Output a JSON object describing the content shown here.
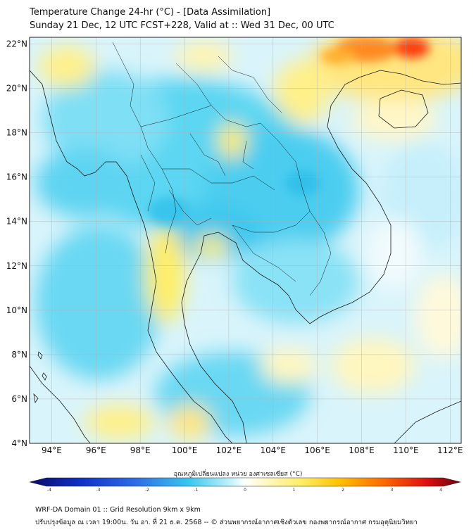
{
  "header": {
    "title_line1": "Temperature Change 24-hr (°C) - [Data Assimilation]",
    "title_line2": "Sunday 21 Dec, 12 UTC FCST+228, Valid at :: Wed 31 Dec, 00 UTC"
  },
  "map": {
    "lon_range": [
      93,
      112.5
    ],
    "lat_range": [
      4,
      22.3
    ],
    "lat_labels": [
      "22°N",
      "20°N",
      "18°N",
      "16°N",
      "14°N",
      "12°N",
      "10°N",
      "8°N",
      "6°N",
      "4°N"
    ],
    "lat_values": [
      22,
      20,
      18,
      16,
      14,
      12,
      10,
      8,
      6,
      4
    ],
    "lon_labels": [
      "94°E",
      "96°E",
      "98°E",
      "100°E",
      "102°E",
      "104°E",
      "106°E",
      "108°E",
      "110°E",
      "112°E"
    ],
    "lon_values": [
      94,
      96,
      98,
      100,
      102,
      104,
      106,
      108,
      110,
      112
    ]
  },
  "colorbar": {
    "title": "อุณหภูมิเปลี่ยนแปลง หน่วย องศาเซลเซียส (°C)",
    "tick_labels": [
      "-4",
      "-3",
      "-2",
      "-1",
      "0",
      "1",
      "2",
      "3",
      "4"
    ],
    "tick_values": [
      -4,
      -3,
      -2,
      -1,
      0,
      1,
      2,
      3,
      4
    ],
    "range": [
      -4,
      4
    ]
  },
  "footer": {
    "line1": "WRF-DA Domain 01 :: Grid Resolution 9km x 9km",
    "line2": "ปรับปรุงข้อมูล ณ เวลา 19:00น. วัน อา. ที่ 21 ธ.ค. 2568 -- © ส่วนพยากรณ์อากาศเชิงตัวเลข กองพยากรณ์อากาศ กรมอุตุนิยมวิทยา"
  },
  "colors": {
    "land_outline": "#1a1a1a",
    "grid": "#b0b0b0",
    "cold": "#22ccee",
    "warm": "#ffee66",
    "hot": "#ff3300"
  }
}
